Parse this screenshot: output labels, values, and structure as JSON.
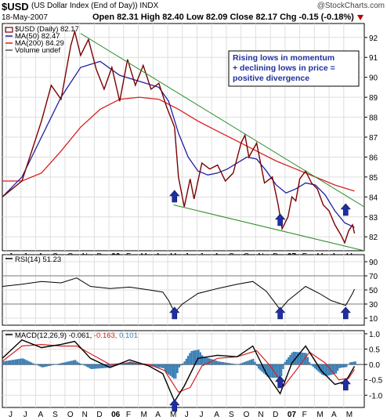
{
  "header": {
    "symbol": "$USD",
    "description": "(US Dollar Index (End of Day)) INDX",
    "brand": "@StockCharts.com",
    "date": "18-May-2007",
    "ohlc_line": "Open 82.31   High 82.40   Low 82.09   Close 82.17",
    "change": "Chg -0.15 (-0.18%)",
    "change_arrow": "down-arrow-icon",
    "colors": {
      "price": "#7a0000",
      "ma50": "#1f1fa0",
      "ma200": "#d82020",
      "trendline": "#2a8a2a",
      "arrow": "#1f2fa0",
      "annotation": "#1f2fa0",
      "macd_hist": "#3a7fb5",
      "signal": "#d82020"
    }
  },
  "months": [
    "J",
    "J",
    "A",
    "S",
    "O",
    "N",
    "D",
    "06",
    "F",
    "M",
    "A",
    "M",
    "J",
    "J",
    "A",
    "S",
    "O",
    "N",
    "D",
    "07",
    "F",
    "M",
    "A",
    "M"
  ],
  "chart_data": [
    {
      "type": "line",
      "legend": [
        "$USD (Daily) 82.17",
        "MA(50) 82.47",
        "MA(200) 84.29",
        "Volume undef"
      ],
      "y_ticks": [
        82,
        83,
        84,
        85,
        86,
        87,
        88,
        89,
        90,
        91,
        92
      ],
      "ylim": [
        81.3,
        92.7
      ],
      "annotation": [
        "Rising lows in momentum",
        "+ declining lows in price =",
        "positive divergence"
      ],
      "price": [
        [
          0,
          84.0
        ],
        [
          2,
          84.8
        ],
        [
          3,
          86.3
        ],
        [
          4,
          87.8
        ],
        [
          5,
          89.6
        ],
        [
          6,
          88.9
        ],
        [
          7,
          91.6
        ],
        [
          7.4,
          92.3
        ],
        [
          8,
          91.1
        ],
        [
          8.8,
          91.9
        ],
        [
          9.6,
          90.4
        ],
        [
          10.4,
          89.4
        ],
        [
          11.2,
          90.5
        ],
        [
          12,
          88.8
        ],
        [
          12.8,
          90.9
        ],
        [
          13.6,
          89.6
        ],
        [
          14.4,
          90.6
        ],
        [
          15.2,
          89.4
        ],
        [
          16,
          89.7
        ],
        [
          16.8,
          88.5
        ],
        [
          17.6,
          87.5
        ],
        [
          18,
          85.0
        ],
        [
          18.6,
          83.5
        ],
        [
          19.2,
          84.9
        ],
        [
          19.6,
          83.9
        ],
        [
          20.4,
          85.7
        ],
        [
          21.2,
          85.4
        ],
        [
          22,
          85.6
        ],
        [
          22.8,
          84.8
        ],
        [
          23.6,
          85.2
        ],
        [
          24.4,
          86.7
        ],
        [
          24.8,
          87.1
        ],
        [
          25.2,
          86.0
        ],
        [
          26,
          86.7
        ],
        [
          26.8,
          84.7
        ],
        [
          27.6,
          85.0
        ],
        [
          28.2,
          83.6
        ],
        [
          28.6,
          82.4
        ],
        [
          29.2,
          83.0
        ],
        [
          29.6,
          84.0
        ],
        [
          30,
          83.8
        ],
        [
          30.4,
          84.9
        ],
        [
          31,
          85.3
        ],
        [
          31.6,
          84.7
        ],
        [
          32.2,
          84.4
        ],
        [
          32.8,
          83.6
        ],
        [
          33.4,
          83.3
        ],
        [
          34,
          82.6
        ],
        [
          34.6,
          82.1
        ],
        [
          35.0,
          81.7
        ],
        [
          35.4,
          82.3
        ],
        [
          35.8,
          82.6
        ],
        [
          36,
          82.17
        ]
      ],
      "ma50": [
        [
          0,
          84.0
        ],
        [
          2,
          85.0
        ],
        [
          4,
          87.0
        ],
        [
          6,
          89.0
        ],
        [
          8,
          90.5
        ],
        [
          10,
          90.8
        ],
        [
          12,
          90.1
        ],
        [
          14,
          89.8
        ],
        [
          16,
          89.5
        ],
        [
          17,
          88.8
        ],
        [
          18,
          87.2
        ],
        [
          19,
          86.0
        ],
        [
          20,
          85.3
        ],
        [
          21,
          85.1
        ],
        [
          22,
          85.2
        ],
        [
          23,
          85.4
        ],
        [
          24,
          85.7
        ],
        [
          25,
          86.0
        ],
        [
          26,
          85.9
        ],
        [
          27,
          85.3
        ],
        [
          28,
          84.6
        ],
        [
          29,
          84.2
        ],
        [
          30,
          84.4
        ],
        [
          31,
          84.7
        ],
        [
          32,
          84.6
        ],
        [
          33,
          84.1
        ],
        [
          34,
          83.3
        ],
        [
          35,
          82.7
        ],
        [
          36,
          82.47
        ]
      ],
      "ma200": [
        [
          0,
          84.8
        ],
        [
          2,
          84.8
        ],
        [
          4,
          85.2
        ],
        [
          6,
          86.3
        ],
        [
          8,
          87.5
        ],
        [
          10,
          88.4
        ],
        [
          12,
          88.9
        ],
        [
          14,
          89.0
        ],
        [
          16,
          88.9
        ],
        [
          18,
          88.4
        ],
        [
          20,
          87.8
        ],
        [
          22,
          87.3
        ],
        [
          24,
          86.8
        ],
        [
          26,
          86.3
        ],
        [
          28,
          85.8
        ],
        [
          30,
          85.4
        ],
        [
          32,
          85.0
        ],
        [
          34,
          84.6
        ],
        [
          36,
          84.29
        ]
      ],
      "trend_upper": [
        [
          8,
          92.2
        ],
        [
          37,
          83.5
        ]
      ],
      "trend_lower": [
        [
          17.5,
          83.6
        ],
        [
          37,
          81.3
        ]
      ],
      "arrows_x": [
        17.6,
        28.4,
        35.1
      ]
    },
    {
      "type": "line",
      "title": "RSI(14) 51.23",
      "y_ticks": [
        10,
        30,
        50,
        70,
        90
      ],
      "guide_levels": [
        30,
        70
      ],
      "ylim": [
        0,
        100
      ],
      "values": [
        [
          0,
          55
        ],
        [
          2,
          58
        ],
        [
          4,
          62
        ],
        [
          6,
          60
        ],
        [
          7.6,
          67
        ],
        [
          9,
          55
        ],
        [
          11,
          52
        ],
        [
          13,
          54
        ],
        [
          15,
          50
        ],
        [
          16.4,
          47
        ],
        [
          17,
          35
        ],
        [
          17.6,
          18
        ],
        [
          18.4,
          30
        ],
        [
          20,
          45
        ],
        [
          22,
          52
        ],
        [
          24,
          58
        ],
        [
          25.6,
          62
        ],
        [
          27,
          48
        ],
        [
          28.4,
          22
        ],
        [
          29.2,
          35
        ],
        [
          31,
          55
        ],
        [
          32.4,
          45
        ],
        [
          33.6,
          35
        ],
        [
          35.1,
          28
        ],
        [
          35.8,
          45
        ],
        [
          36,
          51.23
        ]
      ],
      "arrows_x": [
        17.6,
        28.4,
        35.1
      ]
    },
    {
      "type": "line",
      "title": "MACD(12,26,9)",
      "values_text": [
        "-0.061",
        "-0.163",
        "0.101"
      ],
      "y_ticks": [
        "1.0",
        "0.5",
        "0.0",
        "-0.5",
        "-1.0"
      ],
      "y_values": [
        1.0,
        0.5,
        0.0,
        -0.5,
        -1.0
      ],
      "ylim": [
        -1.4,
        1.1
      ],
      "macd": [
        [
          0,
          0.2
        ],
        [
          2,
          0.8
        ],
        [
          4,
          0.55
        ],
        [
          6,
          0.65
        ],
        [
          7.4,
          0.75
        ],
        [
          9,
          0.2
        ],
        [
          11,
          -0.1
        ],
        [
          13,
          0.15
        ],
        [
          15,
          -0.05
        ],
        [
          16.4,
          -0.3
        ],
        [
          17.6,
          -1.2
        ],
        [
          18.6,
          -0.7
        ],
        [
          20,
          0.2
        ],
        [
          22,
          0.3
        ],
        [
          24,
          0.25
        ],
        [
          25.6,
          0.6
        ],
        [
          27,
          -0.3
        ],
        [
          28.4,
          -0.95
        ],
        [
          29.6,
          0.05
        ],
        [
          31,
          0.6
        ],
        [
          32.6,
          -0.2
        ],
        [
          34,
          -0.65
        ],
        [
          35.1,
          -0.55
        ],
        [
          36,
          -0.06
        ]
      ],
      "signal": [
        [
          0,
          0.1
        ],
        [
          2,
          0.6
        ],
        [
          4,
          0.65
        ],
        [
          6,
          0.6
        ],
        [
          7.6,
          0.6
        ],
        [
          9,
          0.35
        ],
        [
          11,
          0.0
        ],
        [
          13,
          0.05
        ],
        [
          15,
          0.0
        ],
        [
          16.6,
          -0.2
        ],
        [
          18,
          -0.9
        ],
        [
          19.2,
          -0.75
        ],
        [
          20.4,
          -0.05
        ],
        [
          22,
          0.2
        ],
        [
          24,
          0.25
        ],
        [
          26,
          0.45
        ],
        [
          27.4,
          -0.05
        ],
        [
          28.8,
          -0.7
        ],
        [
          30,
          -0.2
        ],
        [
          31.4,
          0.4
        ],
        [
          33,
          0.05
        ],
        [
          34.4,
          -0.5
        ],
        [
          35.4,
          -0.45
        ],
        [
          36,
          -0.16
        ]
      ],
      "arrows_x": [
        17.6,
        28.4,
        35.1
      ]
    }
  ]
}
